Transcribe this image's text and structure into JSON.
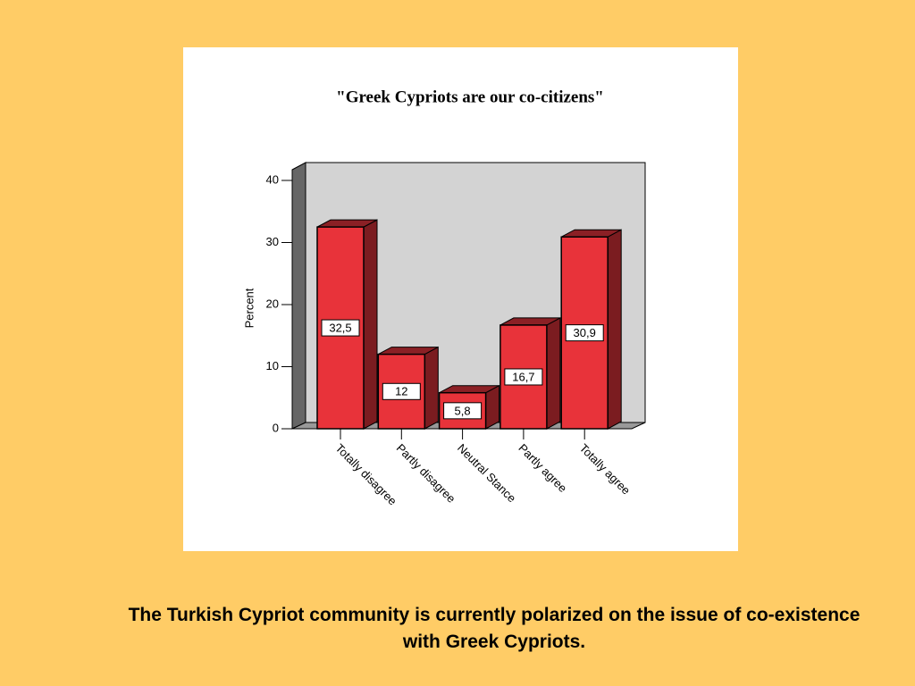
{
  "chart_data": {
    "type": "bar3d",
    "title": "\"Greek Cypriots are our co-citizens\"",
    "y_label": "Percent",
    "categories": [
      "Totally disagree",
      "Partly disagree",
      "Neutral Stance",
      "Partly agree",
      "Totally agree"
    ],
    "values": [
      32.5,
      12,
      5.8,
      16.7,
      30.9
    ],
    "value_labels": [
      "32,5",
      "12",
      "5,8",
      "16,7",
      "30,9"
    ],
    "color": "#e8333a",
    "ylim": [
      0,
      40
    ],
    "yticks": [
      0,
      10,
      20,
      30,
      40
    ]
  },
  "slide": {
    "caption": "The Turkish Cypriot community is currently polarized on the issue of co-existence with Greek Cypriots."
  }
}
